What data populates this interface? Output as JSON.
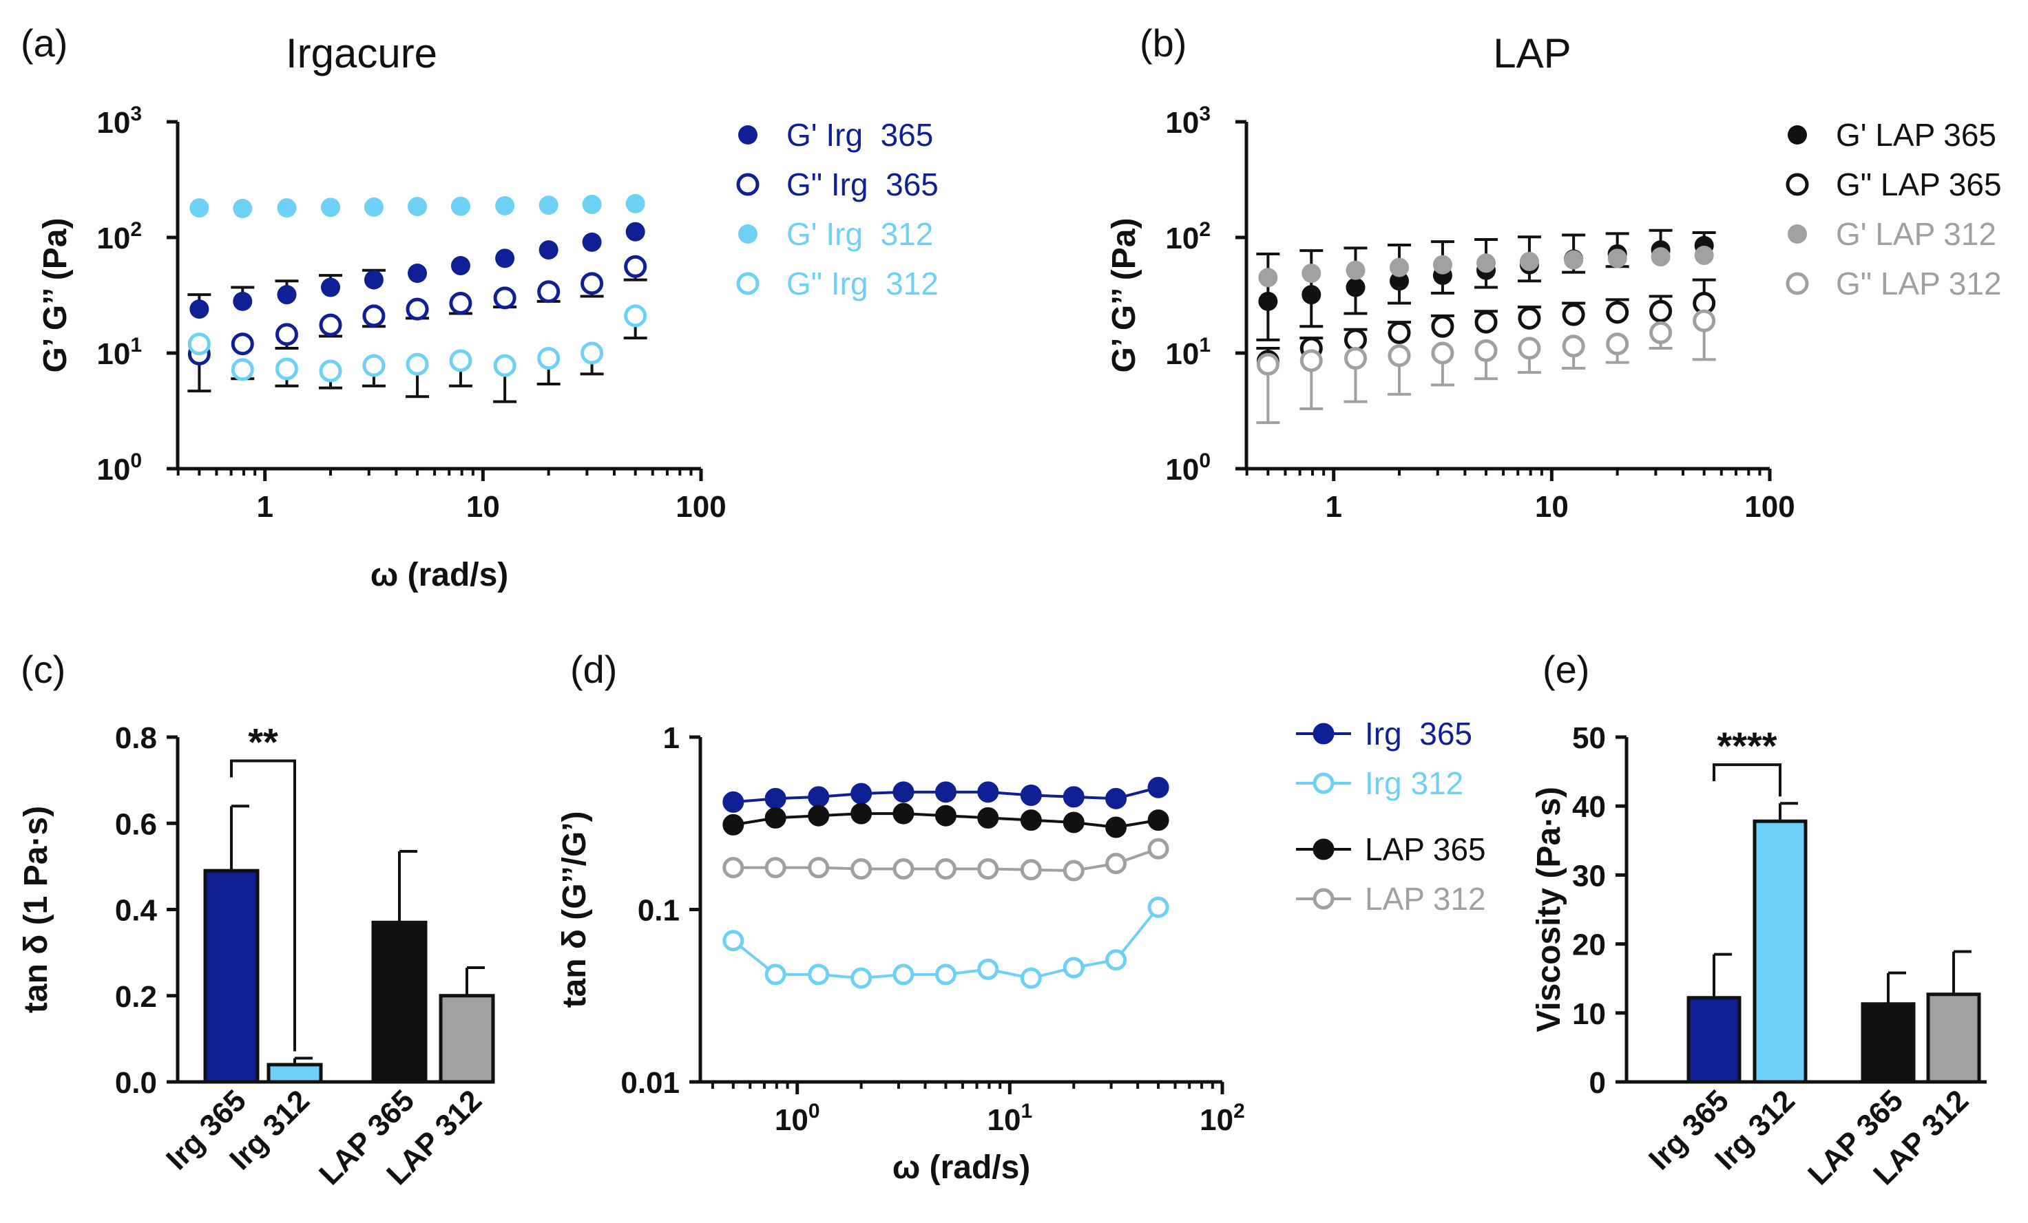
{
  "colors": {
    "dark_blue": "#0f1f94",
    "light_blue": "#6fd0f6",
    "black": "#111111",
    "gray": "#a0a0a0"
  },
  "chart_data": [
    {
      "panel": "(a)",
      "type": "scatter",
      "title": "Irgacure",
      "xlabel": "ω (rad/s)",
      "ylabel": "G’ G’’ (Pa)",
      "xscale": "log",
      "yscale": "log",
      "xlim": [
        0.398,
        100
      ],
      "ylim": [
        1,
        1000
      ],
      "xticks": [
        1,
        10,
        100
      ],
      "xtick_labels": [
        "1",
        "10",
        "100"
      ],
      "yticks": [
        1,
        10,
        100,
        1000
      ],
      "ytick_labels": [
        "10",
        "10",
        "10",
        "10"
      ],
      "ytick_exps": [
        "0",
        "1",
        "2",
        "3"
      ],
      "x": [
        0.5,
        0.79,
        1.26,
        2.0,
        3.16,
        5.0,
        7.9,
        12.6,
        20.0,
        31.6,
        50.0
      ],
      "series": [
        {
          "name": "G' Irg  365",
          "color": "#0f1f94",
          "filled": true,
          "values": [
            24,
            28,
            32,
            37,
            43,
            49,
            57,
            66,
            78,
            91,
            112
          ],
          "err_hi": [
            32,
            37,
            42,
            47,
            52,
            null,
            null,
            null,
            null,
            null,
            null
          ],
          "err_lo": [
            null,
            null,
            null,
            null,
            null,
            null,
            null,
            null,
            null,
            null,
            null
          ]
        },
        {
          "name": "G\" Irg  365",
          "color": "#0f1f94",
          "filled": false,
          "values": [
            9.8,
            12,
            14.5,
            17.5,
            21,
            24,
            27,
            30,
            34,
            40,
            56
          ],
          "err_hi": [
            null,
            null,
            null,
            null,
            null,
            null,
            null,
            null,
            null,
            null,
            null
          ],
          "err_lo": [
            null,
            null,
            11,
            14,
            17,
            20,
            22,
            25,
            28,
            31,
            43
          ]
        },
        {
          "name": "G' Irg  312",
          "color": "#6fd0f6",
          "filled": true,
          "values": [
            180,
            178,
            180,
            182,
            183,
            185,
            186,
            188,
            190,
            193,
            196
          ],
          "err_hi": [
            null,
            null,
            null,
            null,
            null,
            null,
            null,
            null,
            null,
            null,
            null
          ],
          "err_lo": [
            null,
            null,
            null,
            null,
            null,
            null,
            null,
            null,
            null,
            null,
            null
          ]
        },
        {
          "name": "G\" Irg  312",
          "color": "#6fd0f6",
          "filled": false,
          "values": [
            12,
            7.2,
            7.3,
            7.0,
            7.8,
            8.0,
            8.6,
            7.8,
            9.0,
            10.0,
            21
          ],
          "err_hi": [
            null,
            null,
            null,
            null,
            null,
            null,
            null,
            null,
            null,
            null,
            null
          ],
          "err_lo": [
            4.7,
            6.0,
            5.2,
            5.0,
            5.2,
            4.2,
            5.2,
            3.8,
            5.4,
            6.6,
            13.5
          ]
        }
      ]
    },
    {
      "panel": "(b)",
      "type": "scatter",
      "title": "LAP",
      "xlabel": "",
      "ylabel": "G’ G’’ (Pa)",
      "xscale": "log",
      "yscale": "log",
      "xlim": [
        0.398,
        100
      ],
      "ylim": [
        1,
        1000
      ],
      "xticks": [
        1,
        10,
        100
      ],
      "xtick_labels": [
        "1",
        "10",
        "100"
      ],
      "yticks": [
        1,
        10,
        100,
        1000
      ],
      "ytick_labels": [
        "10",
        "10",
        "10",
        "10"
      ],
      "ytick_exps": [
        "0",
        "1",
        "2",
        "3"
      ],
      "x": [
        0.5,
        0.79,
        1.26,
        2.0,
        3.16,
        5.0,
        7.9,
        12.6,
        20.0,
        31.6,
        50.0
      ],
      "series": [
        {
          "name": "G' LAP 365",
          "color": "#111111",
          "filled": true,
          "values": [
            28,
            32,
            37,
            42,
            47,
            52,
            58,
            65,
            72,
            78,
            85
          ],
          "err_hi": [
            72,
            77,
            81,
            86,
            92,
            96,
            101,
            105,
            108,
            115,
            110
          ],
          "err_lo": [
            13,
            17,
            22,
            27,
            33,
            37,
            42,
            50,
            56,
            null,
            null
          ]
        },
        {
          "name": "G\" LAP 365",
          "color": "#111111",
          "filled": false,
          "values": [
            8.5,
            11,
            13,
            15,
            17,
            18.5,
            20,
            21.5,
            22.5,
            23,
            27
          ],
          "err_hi": [
            11,
            13.5,
            16,
            18.5,
            21,
            23,
            25,
            27,
            29,
            31,
            43
          ],
          "err_lo": [
            null,
            null,
            null,
            null,
            null,
            null,
            null,
            null,
            null,
            null,
            null
          ]
        },
        {
          "name": "G' LAP 312",
          "color": "#a0a0a0",
          "filled": true,
          "values": [
            45,
            49,
            52,
            55,
            58,
            60,
            62,
            64,
            66,
            68,
            70
          ],
          "err_hi": [
            null,
            null,
            null,
            null,
            null,
            null,
            null,
            null,
            null,
            null,
            null
          ],
          "err_lo": [
            null,
            null,
            null,
            null,
            null,
            null,
            null,
            null,
            null,
            null,
            null
          ]
        },
        {
          "name": "G\" LAP 312",
          "color": "#a0a0a0",
          "filled": false,
          "values": [
            8,
            8.6,
            9,
            9.5,
            10,
            10.5,
            11,
            11.5,
            12,
            15,
            19
          ],
          "err_hi": [
            null,
            null,
            null,
            null,
            null,
            null,
            null,
            null,
            null,
            null,
            null
          ],
          "err_lo": [
            2.5,
            3.3,
            3.8,
            4.4,
            5.3,
            6.0,
            6.8,
            7.4,
            8.3,
            11,
            8.8
          ]
        }
      ]
    },
    {
      "panel": "(c)",
      "type": "bar",
      "title": "",
      "ylabel": "tan δ (1 Pa·s)",
      "ylim": [
        0,
        0.8
      ],
      "yticks": [
        0,
        0.2,
        0.4,
        0.6,
        0.8
      ],
      "ytick_labels": [
        "0.0",
        "0.2",
        "0.4",
        "0.6",
        "0.8"
      ],
      "categories": [
        "Irg 365",
        "Irg 312",
        "LAP 365",
        "LAP 312"
      ],
      "values": [
        0.49,
        0.04,
        0.37,
        0.2
      ],
      "errors": [
        0.15,
        0.015,
        0.165,
        0.065
      ],
      "bar_colors": [
        "#0f1f94",
        "#6fd0f6",
        "#111111",
        "#a0a0a0"
      ],
      "annotation": {
        "text": "**",
        "between": [
          0,
          1
        ],
        "y": 0.745
      }
    },
    {
      "panel": "(d)",
      "type": "line",
      "title": "",
      "xlabel": "ω (rad/s)",
      "ylabel": "tan δ (G’’/G’)",
      "xscale": "log",
      "yscale": "log",
      "xlim": [
        0.35,
        100
      ],
      "ylim": [
        0.01,
        1
      ],
      "xticks": [
        1,
        10,
        100
      ],
      "xtick_labels": [
        "10",
        "10",
        "10"
      ],
      "xtick_exps": [
        "0",
        "1",
        "2"
      ],
      "yticks": [
        0.01,
        0.1,
        1
      ],
      "ytick_labels": [
        "0.01",
        "0.1",
        "1"
      ],
      "x": [
        0.5,
        0.79,
        1.26,
        2.0,
        3.16,
        5.0,
        7.9,
        12.6,
        20.0,
        31.6,
        50.0
      ],
      "series": [
        {
          "name": "Irg  365",
          "color": "#0f1f94",
          "filled": true,
          "values": [
            0.42,
            0.44,
            0.45,
            0.47,
            0.48,
            0.48,
            0.48,
            0.46,
            0.45,
            0.44,
            0.51
          ]
        },
        {
          "name": "Irg 312",
          "color": "#6fd0f6",
          "filled": false,
          "values": [
            0.066,
            0.042,
            0.042,
            0.04,
            0.042,
            0.042,
            0.045,
            0.04,
            0.046,
            0.051,
            0.103
          ]
        },
        {
          "name": "LAP 365",
          "color": "#111111",
          "filled": true,
          "values": [
            0.31,
            0.34,
            0.35,
            0.36,
            0.36,
            0.35,
            0.34,
            0.33,
            0.32,
            0.3,
            0.33
          ]
        },
        {
          "name": "LAP 312",
          "color": "#a0a0a0",
          "filled": false,
          "values": [
            0.175,
            0.175,
            0.175,
            0.172,
            0.172,
            0.172,
            0.172,
            0.17,
            0.168,
            0.185,
            0.225
          ]
        }
      ]
    },
    {
      "panel": "(e)",
      "type": "bar",
      "title": "",
      "ylabel": "Viscosity (Pa·s)",
      "ylim": [
        0,
        50
      ],
      "yticks": [
        0,
        10,
        20,
        30,
        40,
        50
      ],
      "ytick_labels": [
        "0",
        "10",
        "20",
        "30",
        "40",
        "50"
      ],
      "categories": [
        "Irg 365",
        "Irg 312",
        "LAP 365",
        "LAP 312"
      ],
      "values": [
        12.2,
        37.8,
        11.3,
        12.7
      ],
      "errors": [
        6.3,
        2.6,
        4.5,
        6.2
      ],
      "bar_colors": [
        "#0f1f94",
        "#6fd0f6",
        "#111111",
        "#a0a0a0"
      ],
      "annotation": {
        "text": "****",
        "between": [
          0,
          1
        ],
        "y": 46
      }
    }
  ]
}
